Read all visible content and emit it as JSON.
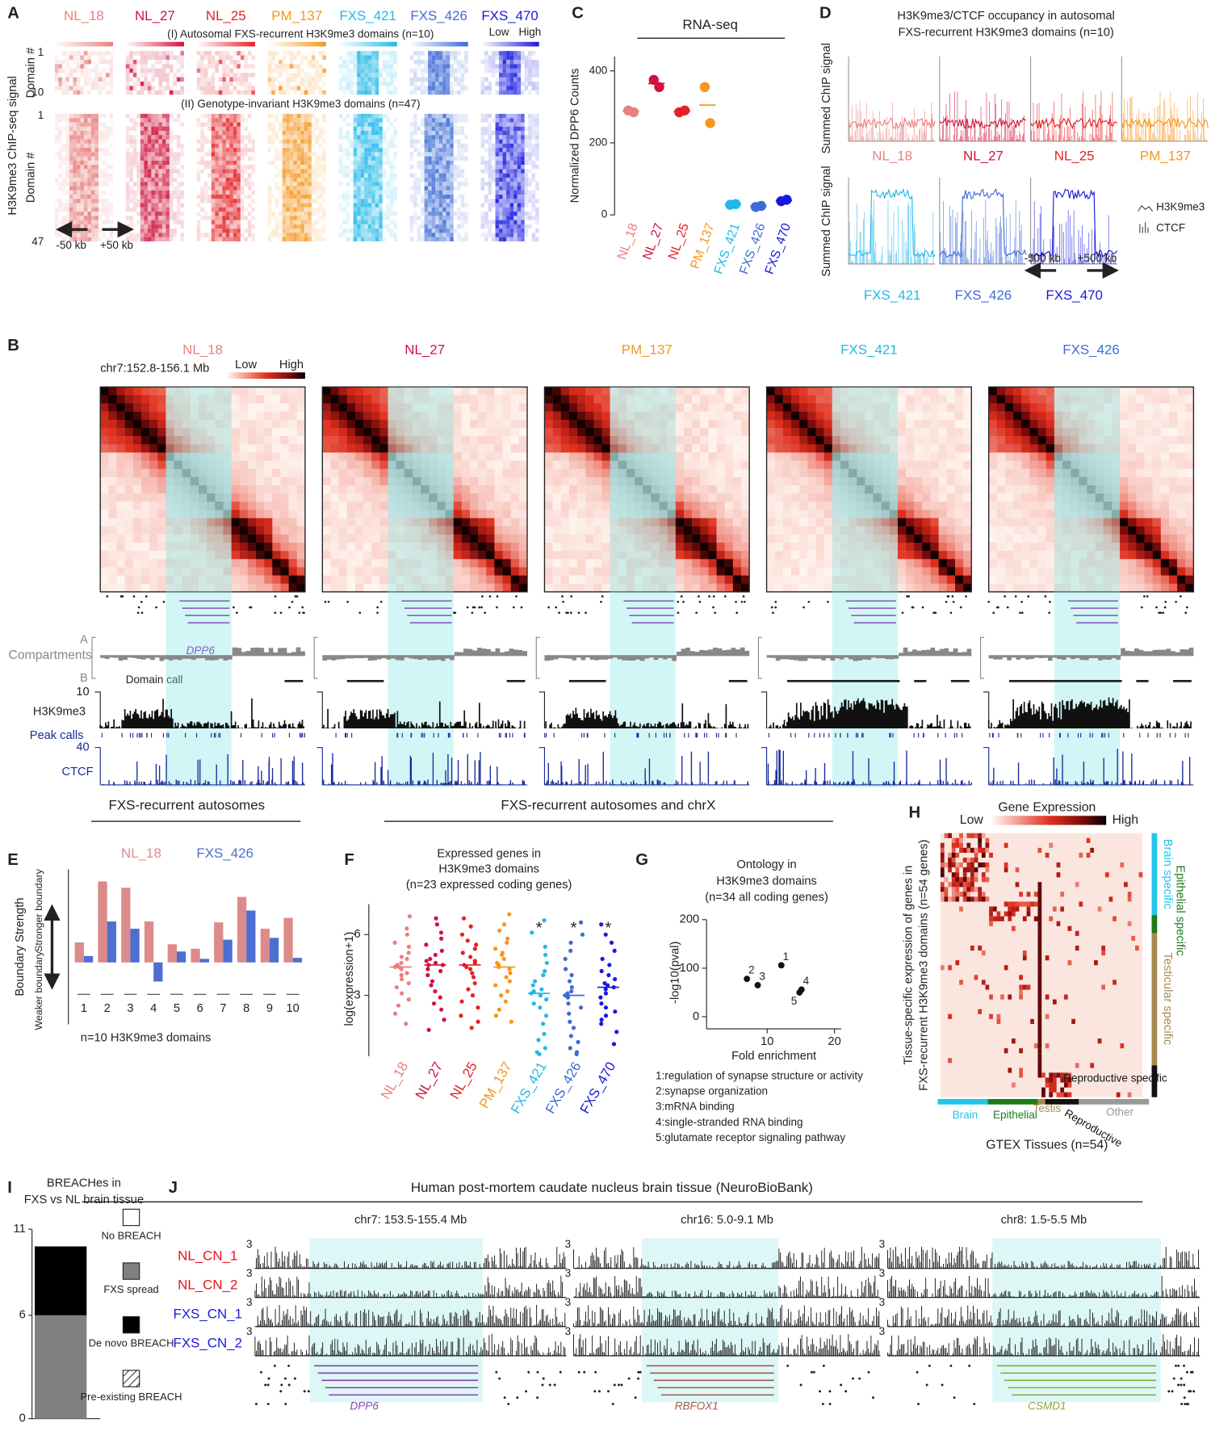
{
  "panel_labels": [
    "A",
    "B",
    "C",
    "D",
    "E",
    "F",
    "G",
    "H",
    "I",
    "J"
  ],
  "samples": [
    {
      "name": "NL_18",
      "color": "#e8807f"
    },
    {
      "name": "NL_27",
      "color": "#d0123c"
    },
    {
      "name": "NL_25",
      "color": "#e42125"
    },
    {
      "name": "PM_137",
      "color": "#f5961f"
    },
    {
      "name": "FXS_421",
      "color": "#22b8ea"
    },
    {
      "name": "FXS_426",
      "color": "#3d6bd6"
    },
    {
      "name": "FXS_470",
      "color": "#1818e0"
    }
  ],
  "panel_a": {
    "subtitle_1": "(I) Autosomal FXS-recurrent H3K9me3 domains (n=10)",
    "subtitle_2": "(II) Genotype-invariant H3K9me3 domains (n=47)",
    "scale_low": "Low",
    "scale_high": "High",
    "y_label": "H3K9me3 ChIP-seq signal",
    "row_label": "Domain #",
    "rows_1": [
      "1",
      "10"
    ],
    "rows_2": [
      "1",
      "47"
    ],
    "left_flank": "-50 kb",
    "right_flank": "+50 kb"
  },
  "panel_b": {
    "region": "chr7:152.8-156.1 Mb",
    "scale_low": "Low",
    "scale_high": "High",
    "gene": "DPP6",
    "compartment_a": "A",
    "compartment_b": "B",
    "compartments": "Compartments",
    "domain_call": "Domain call",
    "h3k9me3_max": 10,
    "h3k9me3": "H3K9me3",
    "peak_calls": "Peak calls",
    "ctcf_max": 40,
    "ctcf": "CTCF"
  },
  "panel_d": {
    "title_lines": [
      "H3K9me3/CTCF occupancy in autosomal",
      "FXS-recurrent H3K9me3 domains (n=10)"
    ],
    "y_label": "Summed ChIP signal",
    "legend": [
      "H3K9me3",
      "CTCF"
    ],
    "left_flank": "-500 kb",
    "right_flank": "+500 kb"
  },
  "panel_h": {
    "title": "Gene Expression",
    "scale_low": "Low",
    "scale_high": "High",
    "y_label_lines": [
      "Tissue-specific expression of genes in",
      "FXS-recurrent H3K9me3 domains (n=54 genes)"
    ],
    "row_groups": [
      "Brain specific",
      "Epithelial specific",
      "Testicular specific",
      "Reproductive specific"
    ],
    "column_groups": [
      "Brain",
      "Epithelial",
      "Testis",
      "Reproductive",
      "Other"
    ],
    "x_label": "GTEX Tissues (n=54)"
  },
  "panel_j": {
    "title": "Human post-mortem caudate nucleus brain tissue (NeuroBioBank)",
    "regions": [
      "chr7: 153.5-155.4 Mb",
      "chr16: 5.0-9.1 Mb",
      "chr8: 1.5-5.5 Mb"
    ],
    "tracks": [
      {
        "name": "NL_CN_1",
        "color": "#e8141b"
      },
      {
        "name": "NL_CN_2",
        "color": "#e8141b"
      },
      {
        "name": "FXS_CN_1",
        "color": "#1a1ae0"
      },
      {
        "name": "FXS_CN_2",
        "color": "#1a1ae0"
      }
    ],
    "track_max": 3,
    "genes": [
      {
        "name": "DPP6",
        "color": "#8a3fb0"
      },
      {
        "name": "RBFOX1",
        "color": "#a05a48"
      },
      {
        "name": "CSMD1",
        "color": "#8aa83a"
      }
    ]
  },
  "chart_data": [
    {
      "type": "strip",
      "title": "RNA-seq",
      "y_label": "Normalized DPP6 Counts",
      "categories": [
        "NL_18",
        "NL_27",
        "NL_25",
        "PM_137",
        "FXS_421",
        "FXS_426",
        "FXS_470"
      ],
      "colors": [
        "#e8807f",
        "#d0123c",
        "#e42125",
        "#f5961f",
        "#22b8ea",
        "#3d6bd6",
        "#1818e0"
      ],
      "values": [
        [
          290,
          285
        ],
        [
          375,
          355
        ],
        [
          285,
          290
        ],
        [
          355,
          255
        ],
        [
          28,
          30
        ],
        [
          22,
          25
        ],
        [
          38,
          42
        ]
      ],
      "means": [
        288,
        365,
        288,
        305,
        29,
        24,
        40
      ],
      "ylim": [
        0,
        440
      ],
      "yticks": [
        0,
        200,
        400
      ]
    },
    {
      "type": "grouped_bar",
      "header": "FXS-recurrent autosomes",
      "y_label": "Boundary Strength",
      "y_high": "Stronger boundary",
      "y_low": "Weaker boundary",
      "x_label": "n=10 H3K9me3 domains",
      "categories": [
        "1",
        "2",
        "3",
        "4",
        "5",
        "6",
        "7",
        "8",
        "9",
        "10"
      ],
      "series": [
        {
          "name": "NL_18",
          "color": "#dd8a8a",
          "values": [
            22,
            89,
            82,
            45,
            20,
            15,
            44,
            72,
            37,
            49
          ]
        },
        {
          "name": "FXS_426",
          "color": "#4d6fd0",
          "values": [
            7,
            45,
            37,
            -21,
            12,
            4,
            25,
            57,
            27,
            5
          ]
        }
      ],
      "ylim": [
        -68,
        102
      ]
    },
    {
      "type": "strip",
      "header": "FXS-recurrent autosomes and chrX",
      "title_lines": [
        "Expressed genes in",
        "H3K9me3 domains",
        "(n=23 expressed coding genes)"
      ],
      "y_label": "log(expression+1)",
      "categories": [
        "NL_18",
        "NL_27",
        "NL_25",
        "PM_137",
        "FXS_421",
        "FXS_426",
        "FXS_470"
      ],
      "colors": [
        "#e8807f",
        "#d0123c",
        "#e42125",
        "#f5961f",
        "#22b8ea",
        "#3d6bd6",
        "#1818e0"
      ],
      "values": [
        [
          6.9,
          6.3,
          6.0,
          5.6,
          5.4,
          5.1,
          4.9,
          4.8,
          4.6,
          4.5,
          4.4,
          4.4,
          4.3,
          4.1,
          4.0,
          3.8,
          3.6,
          3.4,
          3.1,
          2.8,
          2.5,
          2.1,
          1.6
        ],
        [
          6.8,
          6.5,
          6.1,
          5.8,
          5.5,
          5.2,
          5.0,
          4.8,
          4.7,
          4.6,
          4.5,
          4.5,
          4.3,
          4.2,
          4.0,
          3.7,
          3.5,
          3.2,
          2.9,
          2.6,
          2.3,
          1.8,
          1.3
        ],
        [
          6.8,
          6.4,
          6.0,
          5.7,
          5.5,
          5.3,
          5.1,
          4.9,
          4.7,
          4.6,
          4.5,
          4.4,
          4.3,
          4.1,
          3.9,
          3.6,
          3.3,
          3.0,
          2.7,
          2.4,
          2.0,
          1.7,
          1.4
        ],
        [
          7.0,
          6.5,
          6.2,
          5.8,
          5.6,
          5.3,
          5.1,
          5.0,
          4.8,
          4.6,
          4.5,
          4.4,
          4.3,
          4.1,
          3.9,
          3.7,
          3.5,
          3.2,
          3.0,
          2.7,
          2.3,
          2.0,
          1.7
        ],
        [
          6.7,
          6.1,
          5.4,
          5.0,
          4.6,
          4.2,
          4.0,
          3.7,
          3.5,
          3.3,
          3.2,
          3.1,
          3.0,
          2.8,
          2.6,
          2.4,
          2.0,
          1.6,
          1.1,
          0.8,
          0.4,
          0.2,
          0.1
        ],
        [
          6.6,
          6.0,
          5.6,
          5.2,
          4.8,
          4.3,
          4.0,
          3.7,
          3.4,
          3.2,
          3.1,
          3.0,
          2.9,
          2.6,
          2.4,
          2.1,
          1.7,
          1.4,
          1.0,
          0.7,
          0.4,
          0.2,
          0.1
        ],
        [
          6.5,
          6.0,
          5.6,
          5.2,
          4.8,
          4.5,
          4.2,
          4.0,
          3.8,
          3.6,
          3.5,
          3.4,
          3.3,
          3.1,
          2.9,
          2.6,
          2.4,
          2.2,
          2.0,
          1.8,
          1.6,
          1.2,
          0.6
        ]
      ],
      "medians": [
        4.4,
        4.5,
        4.5,
        4.4,
        3.1,
        3.0,
        3.4
      ],
      "markers": [
        {
          "index": 4,
          "label": "*"
        },
        {
          "index": 5,
          "label": "*"
        },
        {
          "index": 6,
          "label": "*"
        }
      ],
      "ylim": [
        0,
        7.5
      ],
      "yticks": [
        3,
        6
      ]
    },
    {
      "type": "scatter",
      "title_lines": [
        "Ontology in",
        "H3K9me3 domains",
        "(n=34 all coding genes)"
      ],
      "x_label": "Fold enrichment",
      "y_label": "-log10(pval)",
      "x": [
        12.1,
        7.0,
        8.6,
        15.1,
        14.8
      ],
      "values": [
        106,
        78,
        65,
        56,
        50
      ],
      "point_labels": [
        "1",
        "2",
        "3",
        "4",
        "5"
      ],
      "terms": [
        "1:regulation of synapse structure or activity",
        "2:synapse organization",
        "3:mRNA binding",
        "4:single-stranded RNA binding",
        "5:glutamate receptor signaling pathway"
      ],
      "xlim": [
        1,
        21
      ],
      "xticks": [
        10,
        20
      ],
      "ylim": [
        -25,
        200
      ],
      "yticks": [
        0,
        100,
        200
      ]
    },
    {
      "type": "stacked_bar",
      "title_lines": [
        "BREACHes in",
        "FXS vs NL brain tissue"
      ],
      "series": [
        {
          "name": "No BREACH",
          "color": "#ffffff",
          "values": [
            0
          ]
        },
        {
          "name": "FXS spread",
          "color": "#808080",
          "values": [
            6
          ]
        },
        {
          "name": "De novo BREACH",
          "color": "#000000",
          "values": [
            4
          ]
        },
        {
          "name": "Pre-existing BREACH",
          "color": "#ffffff",
          "hatch": true,
          "values": [
            0
          ]
        }
      ],
      "ylim": [
        0,
        11
      ],
      "yticks": [
        0,
        6,
        11
      ]
    }
  ]
}
